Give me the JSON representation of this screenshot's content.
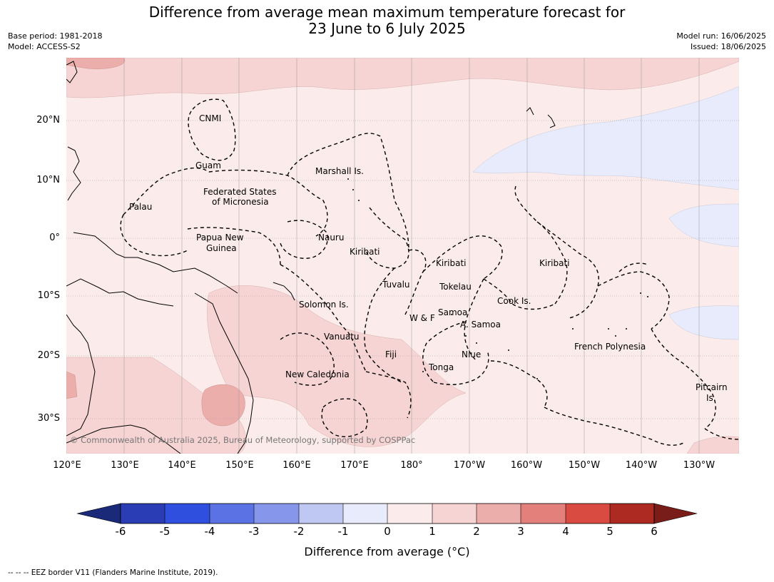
{
  "title": {
    "line1": "Difference from average mean maximum temperature forecast for",
    "line2": "23 June to 6 July 2025"
  },
  "meta_left": {
    "base_period": "Base period: 1981-2018",
    "model": "Model: ACCESS-S2"
  },
  "meta_right": {
    "model_run": "Model run: 16/06/2025",
    "issued": "Issued: 18/06/2025"
  },
  "map": {
    "lat_labels": [
      "20°N",
      "10°N",
      "0°",
      "10°S",
      "20°S",
      "30°S"
    ],
    "lon_labels": [
      "120°E",
      "130°E",
      "140°E",
      "150°E",
      "160°E",
      "170°E",
      "180°",
      "170°W",
      "160°W",
      "150°W",
      "140°W",
      "130°W"
    ],
    "places": [
      {
        "id": "cnmi",
        "text": "CNMI"
      },
      {
        "id": "guam",
        "text": "Guam"
      },
      {
        "id": "marshall",
        "text": "Marshall Is."
      },
      {
        "id": "fsm1",
        "text": "Federated States"
      },
      {
        "id": "fsm2",
        "text": "of Micronesia"
      },
      {
        "id": "palau",
        "text": "Palau"
      },
      {
        "id": "png1",
        "text": "Papua New"
      },
      {
        "id": "png2",
        "text": "Guinea"
      },
      {
        "id": "nauru",
        "text": "Nauru"
      },
      {
        "id": "kiribati_w",
        "text": "Kiribati"
      },
      {
        "id": "kiribati_c",
        "text": "Kiribati"
      },
      {
        "id": "kiribati_e",
        "text": "Kiribati"
      },
      {
        "id": "tuvalu",
        "text": "Tuvalu"
      },
      {
        "id": "tokelau",
        "text": "Tokelau"
      },
      {
        "id": "cook",
        "text": "Cook Is."
      },
      {
        "id": "solomon",
        "text": "Solomon Is."
      },
      {
        "id": "samoa",
        "text": "Samoa"
      },
      {
        "id": "wf",
        "text": "W & F"
      },
      {
        "id": "asamoa",
        "text": "A. Samoa"
      },
      {
        "id": "vanuatu",
        "text": "Vanuatu"
      },
      {
        "id": "fiji",
        "text": "Fiji"
      },
      {
        "id": "niue",
        "text": "Niue"
      },
      {
        "id": "frpoly",
        "text": "French Polynesia"
      },
      {
        "id": "tonga",
        "text": "Tonga"
      },
      {
        "id": "newcal",
        "text": "New Caledonia"
      },
      {
        "id": "pitcairn1",
        "text": "Pitcairn"
      },
      {
        "id": "pitcairn2",
        "text": "Is."
      }
    ],
    "copyright": "© Commonwealth of Australia 2025, Bureau of Meteorology, supported by COSPPac"
  },
  "colorbar": {
    "ticks": [
      "-6",
      "-5",
      "-4",
      "-3",
      "-2",
      "-1",
      "0",
      "1",
      "2",
      "3",
      "4",
      "5",
      "6"
    ],
    "colors": {
      "below_-6": "#1b2a78",
      "-6_-5": "#2a3db4",
      "-5_-4": "#2f4fde",
      "-4_-3": "#5a72e3",
      "-3_-2": "#8596eb",
      "-2_-1": "#bfc8f2",
      "-1_0": "#e8ebfb",
      "0_1": "#fbeceb",
      "1_2": "#f6d4d3",
      "2_3": "#ecaeab",
      "3_4": "#e4807b",
      "4_5": "#d94a40",
      "5_6": "#ac2a22",
      "above_6": "#7a1d18"
    },
    "label": "Difference from average (°C)"
  },
  "footnote": "-- -- -- EEZ border V11 (Flanders Marine Institute, 2019)."
}
